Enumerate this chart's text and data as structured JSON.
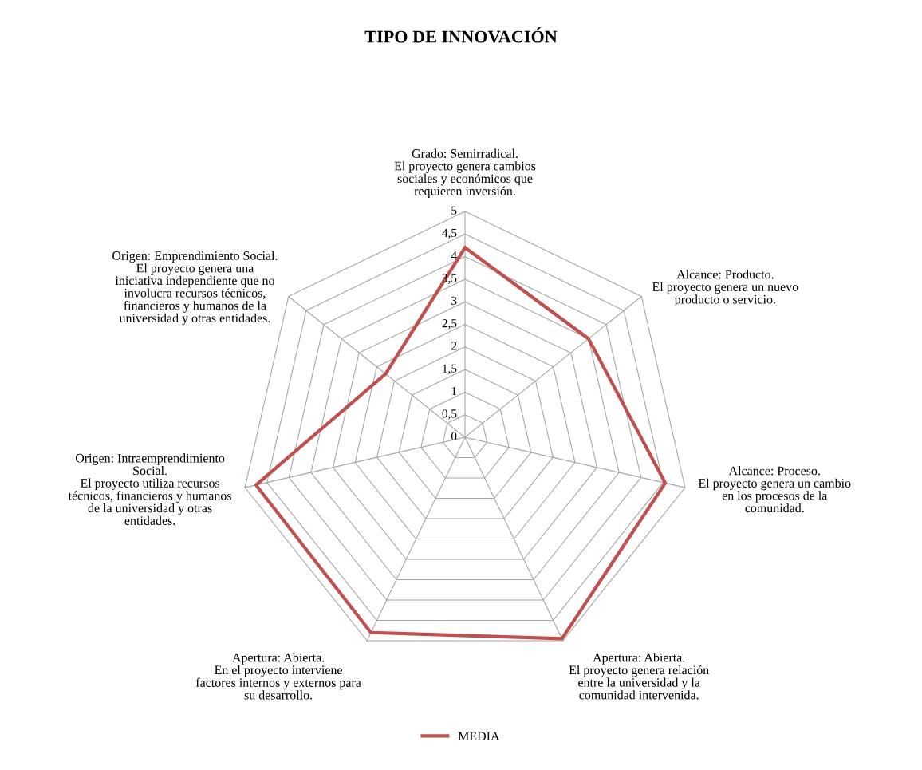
{
  "chart_data": {
    "type": "radar",
    "title": "TIPO DE INNOVACIÓN",
    "categories": [
      "Grado: Semirradical.\nEl proyecto genera cambios\nsociales y económicos que\nrequieren inversión.",
      "Alcance: Producto.\nEl proyecto genera un nuevo\nproducto o servicio.",
      "Alcance: Proceso.\nEl proyecto genera un cambio\nen los procesos de la\ncomunidad.",
      "Apertura: Abierta.\nEl proyecto genera relación\nentre la universidad y la\ncomunidad intervenida.",
      "Apertura: Abierta.\nEn el proyecto interviene\nfactores internos y externos para\nsu desarrollo.",
      "Origen: Intraemprendimiento\nSocial.\nEl proyecto utiliza recursos\ntécnicos, financieros y humanos\nde la universidad y otras\nentidades.",
      "Origen: Emprendimiento Social.\nEl proyecto genera una\niniciativa independiente que no\ninvolucra recursos técnicos,\nfinancieros y humanos de la\nuniversidad y otras entidades."
    ],
    "series": [
      {
        "name": "MEDIA",
        "color": "#c0504d",
        "values": [
          4.2,
          3.5,
          4.55,
          4.95,
          4.8,
          4.75,
          2.25
        ]
      }
    ],
    "ylim": [
      0,
      5
    ],
    "yticks": [
      0,
      {
        "value": 0.5,
        "label": "0,5"
      },
      1,
      {
        "value": 1.5,
        "label": "1,5"
      },
      2,
      {
        "value": 2.5,
        "label": "2,5"
      },
      3,
      {
        "value": 3.5,
        "label": "3,5"
      },
      4,
      {
        "value": 4.5,
        "label": "4,5"
      },
      5
    ],
    "grid": true,
    "legend": "bottom"
  }
}
